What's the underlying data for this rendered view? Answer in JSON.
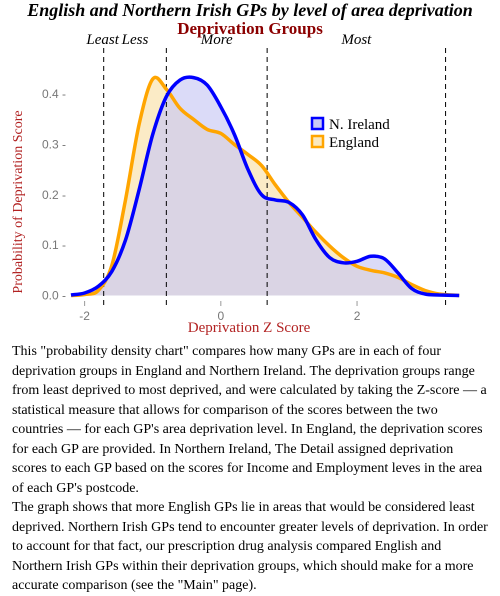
{
  "page": {
    "title": "English and Northern Irish GPs by level of area deprivation",
    "paragraphs": [
      "This \"probability density chart\" compares how many GPs are in each of four deprivation groups in England and Northern Ireland. The deprivation groups range from least deprived to most deprived, and were calculated by taking the Z-score — a statistical measure that allows for comparison of the scores between the two countries — for each GP's area deprivation level. In England, the deprivation scores for each GP are provided. In Northern Ireland, The Detail assigned deprivation scores to each GP based on the scores for Income and Employment leves in the area of each GP's postcode.",
      "The graph shows that more English GPs lie in areas that would be considered least deprived. Northern Irish GPs tend to encounter greater levels of deprivation. In order to account for that fact, our prescription drug analysis compared English and Northern Irish GPs within their deprivation groups, which should make for a more accurate comparison (see the \"Main\" page)."
    ]
  },
  "chart_data": {
    "type": "area",
    "title": "Deprivation Groups",
    "xlabel": "Deprivation Z Score",
    "ylabel": "Probability of Deprivation Score",
    "xlim": [
      -2.2,
      3.6
    ],
    "ylim": [
      -0.005,
      0.46
    ],
    "xticks": [
      -2,
      0,
      2
    ],
    "yticks": [
      0.0,
      0.1,
      0.2,
      0.3,
      0.4
    ],
    "xtick_labels": [
      "-2",
      "0",
      "2"
    ],
    "ytick_labels": [
      "0.0 -",
      "0.1 -",
      "0.2 -",
      "0.3 -",
      "0.4 -"
    ],
    "grid": false,
    "legend_position": "right",
    "groups": [
      {
        "label": "Least",
        "boundary": -1.72
      },
      {
        "label": "Less",
        "boundary": -0.8
      },
      {
        "label": "More",
        "boundary": 0.68
      },
      {
        "label": "Most",
        "boundary": 3.3
      }
    ],
    "series": [
      {
        "name": "N. Ireland",
        "color": "#0000ff",
        "fill": "#c8c8f5",
        "x": [
          -2.2,
          -2.0,
          -1.8,
          -1.6,
          -1.4,
          -1.2,
          -1.0,
          -0.8,
          -0.6,
          -0.4,
          -0.2,
          0.0,
          0.2,
          0.4,
          0.6,
          0.8,
          1.0,
          1.2,
          1.4,
          1.6,
          1.8,
          2.0,
          2.2,
          2.4,
          2.6,
          2.8,
          3.0,
          3.2,
          3.5
        ],
        "y": [
          0.001,
          0.005,
          0.018,
          0.048,
          0.11,
          0.21,
          0.32,
          0.395,
          0.428,
          0.433,
          0.418,
          0.375,
          0.32,
          0.25,
          0.2,
          0.19,
          0.185,
          0.16,
          0.11,
          0.075,
          0.065,
          0.068,
          0.078,
          0.073,
          0.045,
          0.014,
          0.003,
          0.001,
          0.0
        ]
      },
      {
        "name": "England",
        "color": "#ffa500",
        "fill": "#fbe9c0",
        "x": [
          -2.2,
          -2.0,
          -1.8,
          -1.6,
          -1.4,
          -1.2,
          -1.0,
          -0.8,
          -0.6,
          -0.4,
          -0.2,
          0.0,
          0.2,
          0.4,
          0.6,
          0.8,
          1.0,
          1.2,
          1.4,
          1.6,
          1.8,
          2.0,
          2.2,
          2.4,
          2.6,
          2.8,
          3.0,
          3.2,
          3.5
        ],
        "y": [
          0.0,
          0.002,
          0.01,
          0.06,
          0.19,
          0.34,
          0.43,
          0.41,
          0.372,
          0.35,
          0.33,
          0.322,
          0.3,
          0.28,
          0.258,
          0.22,
          0.185,
          0.155,
          0.125,
          0.098,
          0.075,
          0.058,
          0.05,
          0.045,
          0.036,
          0.022,
          0.01,
          0.003,
          0.0
        ]
      }
    ]
  }
}
